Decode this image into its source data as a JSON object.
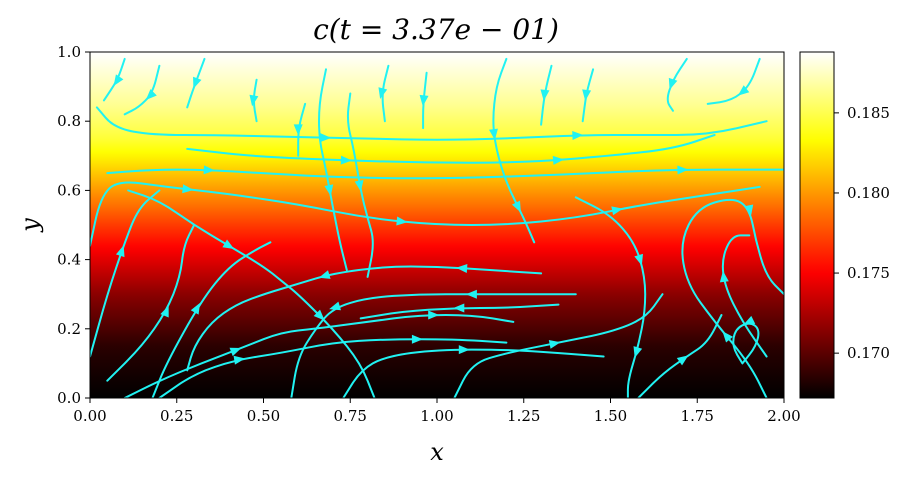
{
  "chart_data": {
    "type": "heatmap",
    "title": "c(t = 3.37e − 01)",
    "xlabel": "x",
    "ylabel": "y",
    "xlim": [
      0.0,
      2.0
    ],
    "ylim": [
      0.0,
      1.0
    ],
    "x_ticks": [
      0.0,
      0.25,
      0.5,
      0.75,
      1.0,
      1.25,
      1.5,
      1.75,
      2.0
    ],
    "x_tick_labels": [
      "0.00",
      "0.25",
      "0.50",
      "0.75",
      "1.00",
      "1.25",
      "1.50",
      "1.75",
      "2.00"
    ],
    "y_ticks": [
      0.0,
      0.2,
      0.4,
      0.6,
      0.8,
      1.0
    ],
    "y_tick_labels": [
      "0.0",
      "0.2",
      "0.4",
      "0.6",
      "0.8",
      "1.0"
    ],
    "colormap": "hot",
    "colorbar": {
      "range": [
        0.1672,
        0.1888
      ],
      "ticks": [
        0.17,
        0.175,
        0.18,
        0.185
      ],
      "tick_labels": [
        "0.170",
        "0.175",
        "0.180",
        "0.185"
      ]
    },
    "field_profile": {
      "y": [
        0.0,
        0.15,
        0.3,
        0.45,
        0.55,
        0.65,
        0.75,
        0.85,
        1.0
      ],
      "c": [
        0.1672,
        0.1685,
        0.1715,
        0.1755,
        0.1785,
        0.1815,
        0.1845,
        0.1865,
        0.1888
      ]
    },
    "streamline_color": "#21f2f2",
    "streamlines": [
      {
        "points": [
          [
            0.02,
            0.84
          ],
          [
            0.07,
            0.78
          ],
          [
            0.18,
            0.76
          ],
          [
            0.36,
            0.76
          ],
          [
            0.55,
            0.755
          ],
          [
            0.8,
            0.75
          ],
          [
            1.0,
            0.745
          ],
          [
            1.2,
            0.75
          ],
          [
            1.42,
            0.76
          ],
          [
            1.6,
            0.76
          ],
          [
            1.78,
            0.76
          ],
          [
            1.95,
            0.8
          ]
        ],
        "arrows": [
          0.35,
          0.72
        ]
      },
      {
        "points": [
          [
            0.05,
            0.65
          ],
          [
            0.18,
            0.66
          ],
          [
            0.32,
            0.66
          ],
          [
            0.5,
            0.65
          ],
          [
            0.66,
            0.64
          ],
          [
            0.86,
            0.635
          ],
          [
            1.0,
            0.635
          ],
          [
            1.15,
            0.638
          ],
          [
            1.35,
            0.645
          ],
          [
            1.55,
            0.655
          ],
          [
            1.72,
            0.66
          ],
          [
            1.9,
            0.66
          ],
          [
            2.0,
            0.66
          ]
        ],
        "arrows": [
          0.15,
          0.85
        ]
      },
      {
        "points": [
          [
            0.0,
            0.44
          ],
          [
            0.03,
            0.58
          ],
          [
            0.08,
            0.63
          ],
          [
            0.22,
            0.61
          ],
          [
            0.4,
            0.59
          ],
          [
            0.6,
            0.56
          ],
          [
            0.8,
            0.52
          ],
          [
            1.0,
            0.5
          ],
          [
            1.2,
            0.5
          ],
          [
            1.4,
            0.52
          ],
          [
            1.6,
            0.56
          ],
          [
            1.8,
            0.59
          ],
          [
            1.93,
            0.61
          ]
        ],
        "arrows": [
          0.2,
          0.5,
          0.8
        ]
      },
      {
        "points": [
          [
            0.28,
            0.72
          ],
          [
            0.45,
            0.7
          ],
          [
            0.65,
            0.69
          ],
          [
            0.95,
            0.68
          ],
          [
            1.25,
            0.68
          ],
          [
            1.5,
            0.7
          ],
          [
            1.68,
            0.72
          ],
          [
            1.8,
            0.76
          ]
        ],
        "arrows": [
          0.3,
          0.7
        ]
      },
      {
        "points": [
          [
            0.11,
            0.6
          ],
          [
            0.2,
            0.57
          ],
          [
            0.3,
            0.5
          ],
          [
            0.4,
            0.44
          ],
          [
            0.5,
            0.38
          ],
          [
            0.55,
            0.34
          ],
          [
            0.6,
            0.3
          ],
          [
            0.7,
            0.2
          ],
          [
            0.78,
            0.1
          ],
          [
            0.82,
            0.0
          ]
        ],
        "arrows": [
          0.35,
          0.7
        ]
      },
      {
        "points": [
          [
            0.0,
            0.12
          ],
          [
            0.05,
            0.3
          ],
          [
            0.1,
            0.45
          ],
          [
            0.14,
            0.55
          ],
          [
            0.2,
            0.6
          ]
        ],
        "arrows": [
          0.6
        ]
      },
      {
        "points": [
          [
            0.05,
            0.05
          ],
          [
            0.15,
            0.15
          ],
          [
            0.22,
            0.25
          ],
          [
            0.26,
            0.35
          ],
          [
            0.27,
            0.44
          ],
          [
            0.3,
            0.5
          ]
        ],
        "arrows": [
          0.5
        ]
      },
      {
        "points": [
          [
            0.1,
            0.0
          ],
          [
            0.2,
            0.05
          ],
          [
            0.32,
            0.1
          ],
          [
            0.45,
            0.15
          ],
          [
            0.55,
            0.19
          ],
          [
            0.65,
            0.2
          ],
          [
            0.8,
            0.22
          ],
          [
            0.95,
            0.24
          ],
          [
            1.1,
            0.24
          ],
          [
            1.22,
            0.22
          ]
        ],
        "arrows": [
          0.3,
          0.8
        ]
      },
      {
        "points": [
          [
            0.2,
            0.0
          ],
          [
            0.3,
            0.07
          ],
          [
            0.42,
            0.11
          ],
          [
            0.55,
            0.13
          ],
          [
            0.7,
            0.16
          ],
          [
            0.85,
            0.17
          ],
          [
            1.05,
            0.17
          ],
          [
            1.2,
            0.16
          ]
        ],
        "arrows": [
          0.25,
          0.75
        ]
      },
      {
        "points": [
          [
            1.3,
            0.36
          ],
          [
            1.15,
            0.37
          ],
          [
            1.0,
            0.38
          ],
          [
            0.85,
            0.38
          ],
          [
            0.7,
            0.36
          ],
          [
            0.6,
            0.33
          ],
          [
            0.5,
            0.3
          ],
          [
            0.42,
            0.27
          ],
          [
            0.35,
            0.22
          ],
          [
            0.3,
            0.15
          ],
          [
            0.28,
            0.08
          ]
        ],
        "arrows": [
          0.2,
          0.55
        ]
      },
      {
        "points": [
          [
            1.4,
            0.3
          ],
          [
            1.25,
            0.3
          ],
          [
            1.1,
            0.3
          ],
          [
            0.95,
            0.3
          ],
          [
            0.8,
            0.29
          ],
          [
            0.7,
            0.26
          ],
          [
            0.65,
            0.2
          ],
          [
            0.6,
            0.12
          ],
          [
            0.58,
            0.0
          ]
        ],
        "arrows": [
          0.3,
          0.7
        ]
      },
      {
        "points": [
          [
            1.35,
            0.27
          ],
          [
            1.2,
            0.26
          ],
          [
            1.05,
            0.26
          ],
          [
            0.9,
            0.25
          ],
          [
            0.78,
            0.23
          ]
        ],
        "arrows": [
          0.5
        ]
      },
      {
        "points": [
          [
            0.73,
            0.0
          ],
          [
            0.78,
            0.08
          ],
          [
            0.85,
            0.12
          ],
          [
            1.0,
            0.14
          ],
          [
            1.2,
            0.14
          ],
          [
            1.35,
            0.13
          ],
          [
            1.48,
            0.12
          ]
        ],
        "arrows": [
          0.5
        ]
      },
      {
        "points": [
          [
            1.05,
            0.0
          ],
          [
            1.1,
            0.1
          ],
          [
            1.2,
            0.13
          ],
          [
            1.35,
            0.16
          ],
          [
            1.5,
            0.19
          ],
          [
            1.6,
            0.23
          ],
          [
            1.65,
            0.3
          ]
        ],
        "arrows": [
          0.5
        ]
      },
      {
        "points": [
          [
            1.95,
            0.0
          ],
          [
            1.9,
            0.1
          ],
          [
            1.8,
            0.22
          ],
          [
            1.72,
            0.33
          ],
          [
            1.7,
            0.45
          ],
          [
            1.75,
            0.55
          ],
          [
            1.85,
            0.58
          ],
          [
            1.9,
            0.55
          ],
          [
            1.92,
            0.45
          ],
          [
            1.95,
            0.35
          ],
          [
            2.0,
            0.3
          ]
        ],
        "arrows": [
          0.2,
          0.75
        ]
      },
      {
        "points": [
          [
            1.95,
            0.12
          ],
          [
            1.88,
            0.22
          ],
          [
            1.83,
            0.32
          ],
          [
            1.82,
            0.4
          ],
          [
            1.85,
            0.47
          ],
          [
            1.9,
            0.47
          ]
        ],
        "arrows": [
          0.6
        ]
      },
      {
        "points": [
          [
            1.88,
            0.1
          ],
          [
            1.92,
            0.15
          ],
          [
            1.93,
            0.2
          ],
          [
            1.9,
            0.22
          ],
          [
            1.86,
            0.2
          ],
          [
            1.85,
            0.15
          ],
          [
            1.88,
            0.1
          ]
        ],
        "arrows": [
          0.5
        ]
      },
      {
        "points": [
          [
            1.58,
            0.0
          ],
          [
            1.65,
            0.07
          ],
          [
            1.72,
            0.12
          ],
          [
            1.78,
            0.16
          ],
          [
            1.82,
            0.24
          ]
        ],
        "arrows": [
          0.5
        ]
      },
      {
        "points": [
          [
            1.4,
            0.58
          ],
          [
            1.5,
            0.53
          ],
          [
            1.57,
            0.45
          ],
          [
            1.6,
            0.35
          ],
          [
            1.6,
            0.25
          ],
          [
            1.58,
            0.15
          ],
          [
            1.55,
            0.05
          ],
          [
            1.55,
            0.0
          ]
        ],
        "arrows": [
          0.4,
          0.8
        ]
      },
      {
        "points": [
          [
            0.18,
            0.0
          ],
          [
            0.22,
            0.1
          ],
          [
            0.32,
            0.28
          ],
          [
            0.4,
            0.38
          ],
          [
            0.48,
            0.43
          ],
          [
            0.52,
            0.45
          ]
        ],
        "arrows": [
          0.5
        ]
      },
      {
        "points": [
          [
            0.75,
            0.88
          ],
          [
            0.74,
            0.8
          ],
          [
            0.76,
            0.72
          ],
          [
            0.78,
            0.6
          ],
          [
            0.8,
            0.52
          ],
          [
            0.82,
            0.45
          ],
          [
            0.8,
            0.35
          ]
        ],
        "arrows": [
          0.5
        ]
      },
      {
        "points": [
          [
            0.68,
            0.95
          ],
          [
            0.66,
            0.85
          ],
          [
            0.66,
            0.75
          ],
          [
            0.68,
            0.66
          ],
          [
            0.7,
            0.55
          ],
          [
            0.72,
            0.45
          ],
          [
            0.74,
            0.37
          ]
        ],
        "arrows": [
          0.6
        ]
      },
      {
        "points": [
          [
            0.62,
            0.85
          ],
          [
            0.6,
            0.78
          ],
          [
            0.6,
            0.7
          ]
        ],
        "arrows": [
          0.5
        ]
      },
      {
        "points": [
          [
            0.48,
            0.92
          ],
          [
            0.47,
            0.86
          ],
          [
            0.48,
            0.8
          ]
        ],
        "arrows": [
          0.5
        ]
      },
      {
        "points": [
          [
            0.86,
            0.96
          ],
          [
            0.84,
            0.88
          ],
          [
            0.85,
            0.8
          ]
        ],
        "arrows": [
          0.5
        ]
      },
      {
        "points": [
          [
            0.97,
            0.94
          ],
          [
            0.96,
            0.85
          ],
          [
            0.96,
            0.78
          ]
        ],
        "arrows": [
          0.5
        ]
      },
      {
        "points": [
          [
            1.2,
            0.98
          ],
          [
            1.17,
            0.9
          ],
          [
            1.16,
            0.8
          ],
          [
            1.17,
            0.72
          ],
          [
            1.2,
            0.62
          ],
          [
            1.25,
            0.52
          ],
          [
            1.28,
            0.45
          ]
        ],
        "arrows": [
          0.4,
          0.8
        ]
      },
      {
        "points": [
          [
            1.33,
            0.96
          ],
          [
            1.31,
            0.88
          ],
          [
            1.3,
            0.79
          ]
        ],
        "arrows": [
          0.5
        ]
      },
      {
        "points": [
          [
            1.45,
            0.95
          ],
          [
            1.43,
            0.88
          ],
          [
            1.42,
            0.8
          ]
        ],
        "arrows": [
          0.5
        ]
      },
      {
        "points": [
          [
            1.72,
            0.98
          ],
          [
            1.68,
            0.92
          ],
          [
            1.66,
            0.86
          ],
          [
            1.68,
            0.83
          ]
        ],
        "arrows": [
          0.5
        ]
      },
      {
        "points": [
          [
            1.93,
            0.98
          ],
          [
            1.9,
            0.9
          ],
          [
            1.85,
            0.86
          ],
          [
            1.78,
            0.85
          ]
        ],
        "arrows": [
          0.5
        ]
      },
      {
        "points": [
          [
            0.2,
            0.96
          ],
          [
            0.18,
            0.88
          ],
          [
            0.14,
            0.84
          ],
          [
            0.1,
            0.82
          ]
        ],
        "arrows": [
          0.5
        ]
      },
      {
        "points": [
          [
            0.33,
            0.98
          ],
          [
            0.3,
            0.9
          ],
          [
            0.28,
            0.84
          ]
        ],
        "arrows": [
          0.5
        ]
      },
      {
        "points": [
          [
            0.1,
            0.98
          ],
          [
            0.08,
            0.92
          ],
          [
            0.04,
            0.86
          ]
        ],
        "arrows": [
          0.5
        ]
      }
    ]
  }
}
